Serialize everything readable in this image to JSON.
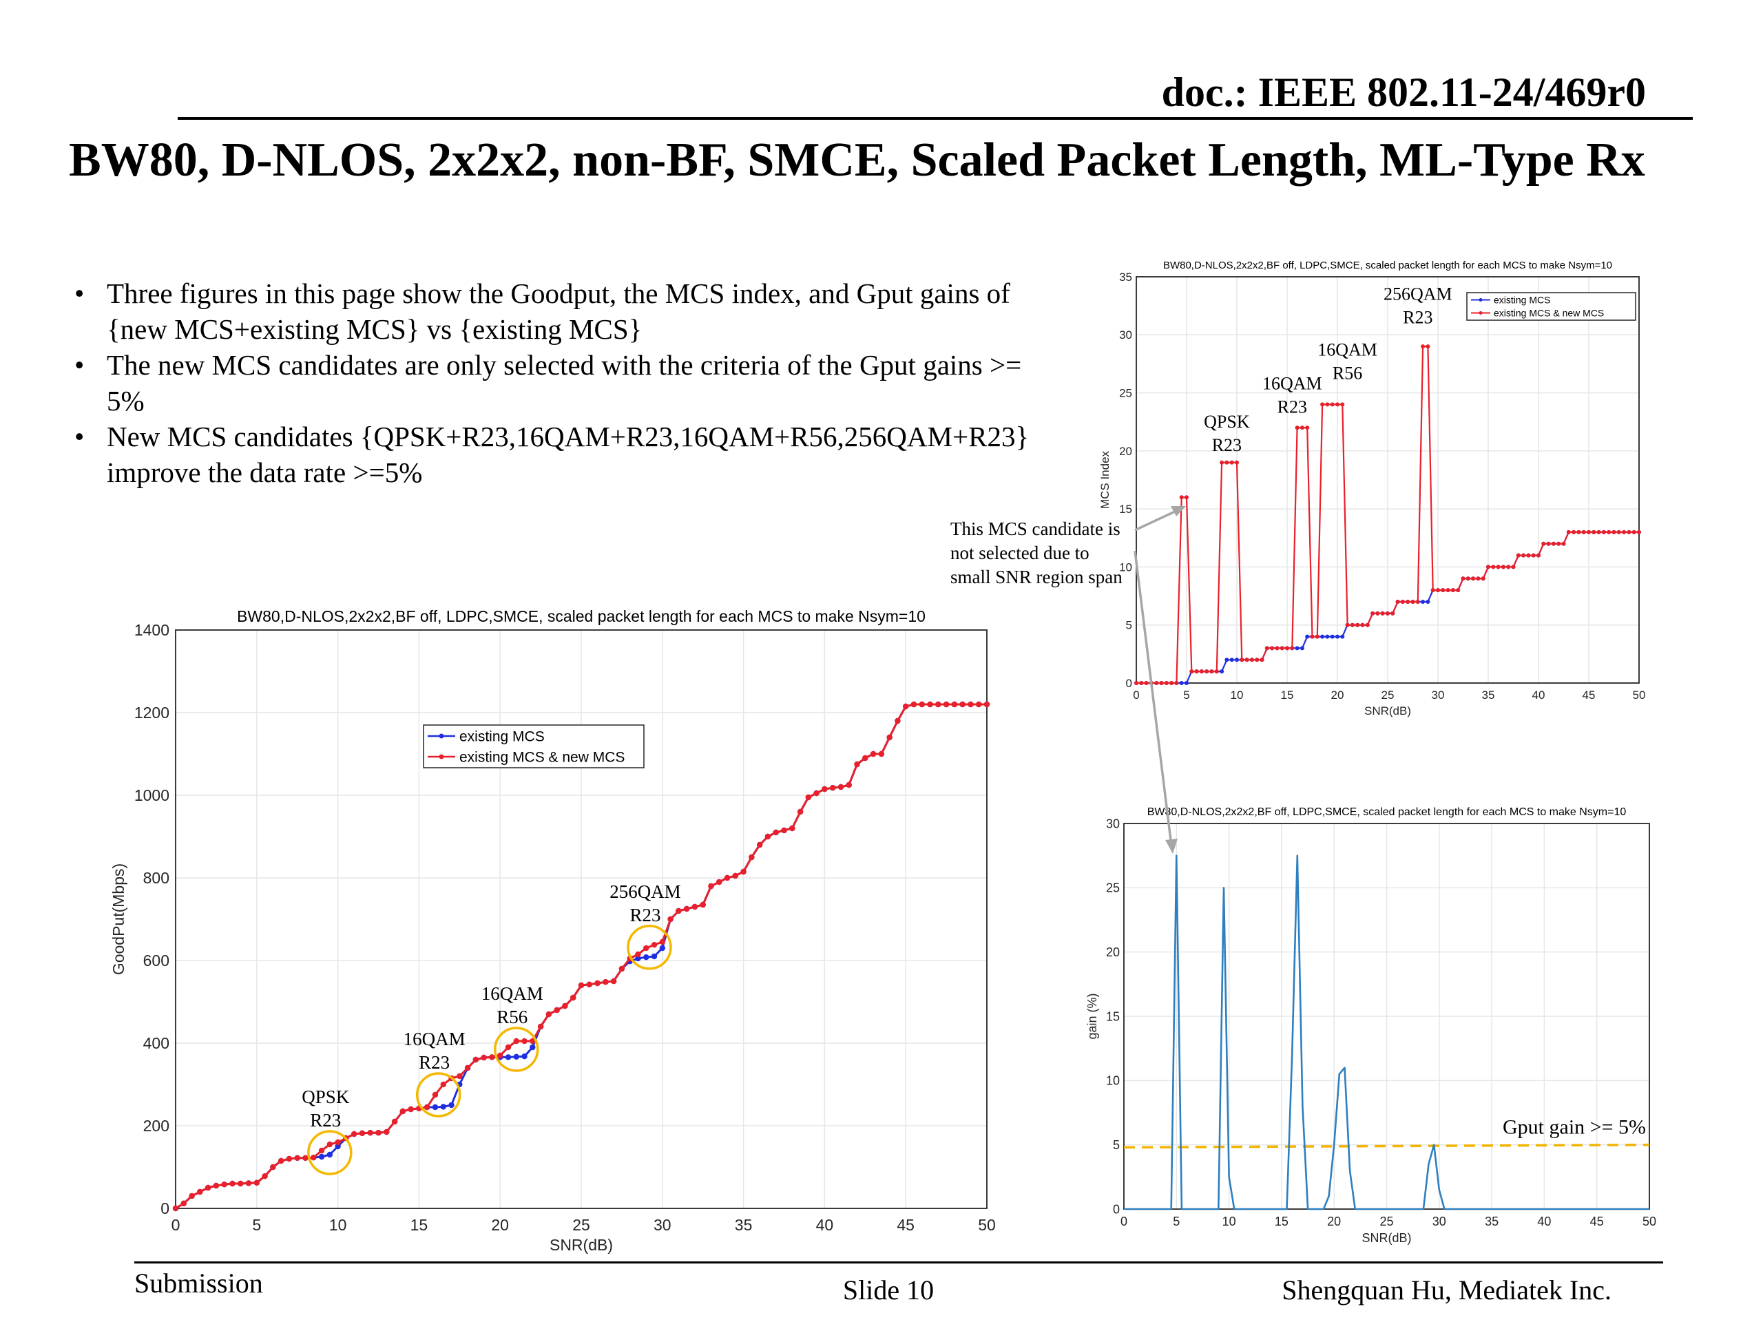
{
  "header": {
    "doc_id": "doc.: IEEE 802.11-24/469r0"
  },
  "title": "BW80, D-NLOS, 2x2x2, non-BF, SMCE, Scaled Packet Length, ML-Type Rx",
  "bullets": [
    "Three figures in this page show the Goodput, the MCS index, and Gput gains of {new MCS+existing MCS} vs {existing MCS}",
    "The new MCS candidates are only selected with the criteria of the Gput gains >= 5%",
    "New MCS candidates {QPSK+R23,16QAM+R23,16QAM+R56,256QAM+R23} improve the data rate >=5%"
  ],
  "footer": {
    "left": "Submission",
    "center": "Slide 10",
    "right": "Shengquan Hu, Mediatek Inc."
  },
  "colors": {
    "existing": "#1f2fe0",
    "new": "#e8202a",
    "gain": "#2e7fbf",
    "threshold": "#f2b400",
    "circle": "#f5b800"
  },
  "callout": {
    "lines": [
      "This MCS candidate is",
      "not selected due to",
      "small SNR region span"
    ]
  },
  "chart_data": [
    {
      "id": "goodput",
      "type": "line",
      "title": "BW80,D-NLOS,2x2x2,BF off, LDPC,SMCE, scaled packet length for each MCS to make Nsym=10",
      "xlabel": "SNR(dB)",
      "ylabel": "GoodPut(Mbps)",
      "xlim": [
        0,
        50
      ],
      "ylim": [
        0,
        1400
      ],
      "xticks": [
        0,
        5,
        10,
        15,
        20,
        25,
        30,
        35,
        40,
        45,
        50
      ],
      "yticks": [
        0,
        200,
        400,
        600,
        800,
        1000,
        1200,
        1400
      ],
      "grid": true,
      "legend": "upper-middle",
      "x": [
        0,
        0.5,
        1,
        1.5,
        2,
        2.5,
        3,
        3.5,
        4,
        4.5,
        5,
        5.5,
        6,
        6.5,
        7,
        7.5,
        8,
        8.5,
        9,
        9.5,
        10,
        10.5,
        11,
        11.5,
        12,
        12.5,
        13,
        13.5,
        14,
        14.5,
        15,
        15.5,
        16,
        16.5,
        17,
        17.5,
        18,
        18.5,
        19,
        19.5,
        20,
        20.5,
        21,
        21.5,
        22,
        22.5,
        23,
        23.5,
        24,
        24.5,
        25,
        25.5,
        26,
        26.5,
        27,
        27.5,
        28,
        28.5,
        29,
        29.5,
        30,
        30.5,
        31,
        31.5,
        32,
        32.5,
        33,
        33.5,
        34,
        34.5,
        35,
        35.5,
        36,
        36.5,
        37,
        37.5,
        38,
        38.5,
        39,
        39.5,
        40,
        40.5,
        41,
        41.5,
        42,
        42.5,
        43,
        43.5,
        44,
        44.5,
        45,
        45.5,
        46,
        46.5,
        47,
        47.5,
        48,
        48.5,
        49,
        49.5,
        50
      ],
      "series": [
        {
          "name": "existing MCS",
          "values": [
            0,
            12,
            30,
            40,
            50,
            55,
            58,
            60,
            60,
            61,
            62,
            78,
            100,
            115,
            120,
            122,
            122,
            123,
            125,
            130,
            150,
            170,
            180,
            182,
            183,
            183,
            185,
            210,
            235,
            240,
            242,
            245,
            245,
            246,
            250,
            300,
            340,
            360,
            365,
            366,
            366,
            366,
            367,
            368,
            390,
            440,
            470,
            480,
            490,
            510,
            540,
            542,
            545,
            548,
            550,
            580,
            598,
            605,
            608,
            610,
            630,
            700,
            720,
            725,
            730,
            735,
            780,
            790,
            800,
            805,
            815,
            850,
            880,
            900,
            910,
            915,
            920,
            960,
            995,
            1005,
            1015,
            1018,
            1020,
            1025,
            1075,
            1090,
            1100,
            1100,
            1140,
            1180,
            1215,
            1220,
            1220,
            1220,
            1220,
            1220,
            1220,
            1220,
            1220,
            1220,
            1220
          ]
        },
        {
          "name": "existing MCS & new MCS",
          "values": [
            0,
            12,
            30,
            40,
            50,
            55,
            58,
            60,
            60,
            61,
            62,
            78,
            100,
            115,
            120,
            122,
            122,
            123,
            140,
            155,
            160,
            170,
            180,
            182,
            183,
            183,
            185,
            210,
            235,
            240,
            242,
            245,
            275,
            300,
            315,
            320,
            340,
            360,
            365,
            366,
            370,
            390,
            405,
            405,
            405,
            440,
            470,
            480,
            490,
            510,
            540,
            542,
            545,
            548,
            550,
            580,
            605,
            615,
            630,
            638,
            645,
            700,
            720,
            725,
            730,
            735,
            780,
            790,
            800,
            805,
            815,
            850,
            880,
            900,
            910,
            915,
            920,
            960,
            995,
            1005,
            1015,
            1018,
            1020,
            1025,
            1075,
            1090,
            1100,
            1100,
            1140,
            1180,
            1215,
            1220,
            1220,
            1220,
            1220,
            1220,
            1220,
            1220,
            1220,
            1220,
            1220
          ]
        }
      ],
      "annotations": [
        {
          "lines": [
            "QPSK",
            "R23"
          ],
          "x": 9.5,
          "y": 135
        },
        {
          "lines": [
            "16QAM",
            "R23"
          ],
          "x": 16.2,
          "y": 275
        },
        {
          "lines": [
            "16QAM",
            "R56"
          ],
          "x": 21,
          "y": 385
        },
        {
          "lines": [
            "256QAM",
            "R23"
          ],
          "x": 29.2,
          "y": 632
        }
      ]
    },
    {
      "id": "mcs",
      "type": "line",
      "title": "BW80,D-NLOS,2x2x2,BF off, LDPC,SMCE, scaled packet length for each MCS to make Nsym=10",
      "xlabel": "SNR(dB)",
      "ylabel": "MCS Index",
      "xlim": [
        0,
        50
      ],
      "ylim": [
        0,
        35
      ],
      "xticks": [
        0,
        5,
        10,
        15,
        20,
        25,
        30,
        35,
        40,
        45,
        50
      ],
      "yticks": [
        0,
        5,
        10,
        15,
        20,
        25,
        30,
        35
      ],
      "grid": true,
      "legend": "top-right",
      "x": [
        0,
        0.5,
        1,
        1.5,
        2,
        2.5,
        3,
        3.5,
        4,
        4.5,
        5,
        5.5,
        6,
        6.5,
        7,
        7.5,
        8,
        8.5,
        9,
        9.5,
        10,
        10.5,
        11,
        11.5,
        12,
        12.5,
        13,
        13.5,
        14,
        14.5,
        15,
        15.5,
        16,
        16.5,
        17,
        17.5,
        18,
        18.5,
        19,
        19.5,
        20,
        20.5,
        21,
        21.5,
        22,
        22.5,
        23,
        23.5,
        24,
        24.5,
        25,
        25.5,
        26,
        26.5,
        27,
        27.5,
        28,
        28.5,
        29,
        29.5,
        30,
        30.5,
        31,
        31.5,
        32,
        32.5,
        33,
        33.5,
        34,
        34.5,
        35,
        35.5,
        36,
        36.5,
        37,
        37.5,
        38,
        38.5,
        39,
        39.5,
        40,
        40.5,
        41,
        41.5,
        42,
        42.5,
        43,
        43.5,
        44,
        44.5,
        45,
        45.5,
        46,
        46.5,
        47,
        47.5,
        48,
        48.5,
        49,
        49.5,
        50
      ],
      "series": [
        {
          "name": "existing MCS",
          "values": [
            0,
            0,
            0,
            0,
            0,
            0,
            0,
            0,
            0,
            0,
            0,
            1,
            1,
            1,
            1,
            1,
            1,
            1,
            2,
            2,
            2,
            2,
            2,
            2,
            2,
            2,
            3,
            3,
            3,
            3,
            3,
            3,
            3,
            3,
            4,
            4,
            4,
            4,
            4,
            4,
            4,
            4,
            5,
            5,
            5,
            5,
            5,
            6,
            6,
            6,
            6,
            6,
            7,
            7,
            7,
            7,
            7,
            7,
            7,
            8,
            8,
            8,
            8,
            8,
            8,
            9,
            9,
            9,
            9,
            9,
            10,
            10,
            10,
            10,
            10,
            10,
            11,
            11,
            11,
            11,
            11,
            12,
            12,
            12,
            12,
            12,
            13,
            13,
            13,
            13,
            13,
            13,
            13,
            13,
            13,
            13,
            13,
            13,
            13,
            13,
            13
          ]
        },
        {
          "name": "existing MCS & new MCS",
          "values": [
            0,
            0,
            0,
            0,
            0,
            0,
            0,
            0,
            0,
            16,
            16,
            1,
            1,
            1,
            1,
            1,
            1,
            19,
            19,
            19,
            19,
            2,
            2,
            2,
            2,
            2,
            3,
            3,
            3,
            3,
            3,
            3,
            22,
            22,
            22,
            4,
            4,
            24,
            24,
            24,
            24,
            24,
            5,
            5,
            5,
            5,
            5,
            6,
            6,
            6,
            6,
            6,
            7,
            7,
            7,
            7,
            7,
            29,
            29,
            8,
            8,
            8,
            8,
            8,
            8,
            9,
            9,
            9,
            9,
            9,
            10,
            10,
            10,
            10,
            10,
            10,
            11,
            11,
            11,
            11,
            11,
            12,
            12,
            12,
            12,
            12,
            13,
            13,
            13,
            13,
            13,
            13,
            13,
            13,
            13,
            13,
            13,
            13,
            13,
            13,
            13
          ]
        }
      ],
      "annotations": [
        {
          "lines": [
            "QPSK",
            "R23"
          ],
          "x": 9,
          "y": 22
        },
        {
          "lines": [
            "16QAM",
            "R23"
          ],
          "x": 15.5,
          "y": 25.3
        },
        {
          "lines": [
            "16QAM",
            "R56"
          ],
          "x": 21,
          "y": 28.2
        },
        {
          "lines": [
            "256QAM",
            "R23"
          ],
          "x": 28,
          "y": 33
        }
      ]
    },
    {
      "id": "gain",
      "type": "line",
      "title": "BW80,D-NLOS,2x2x2,BF off, LDPC,SMCE, scaled packet length for each MCS to make Nsym=10",
      "xlabel": "SNR(dB)",
      "ylabel": "gain (%)",
      "xlim": [
        0,
        50
      ],
      "ylim": [
        0,
        30
      ],
      "xticks": [
        0,
        5,
        10,
        15,
        20,
        25,
        30,
        35,
        40,
        45,
        50
      ],
      "yticks": [
        0,
        5,
        10,
        15,
        20,
        25,
        30
      ],
      "grid": true,
      "x": [
        0,
        0.5,
        1,
        1.5,
        2,
        2.5,
        3,
        3.5,
        4,
        4.5,
        5,
        5.5,
        6,
        6.5,
        7,
        7.5,
        8,
        8.5,
        9,
        9.5,
        10,
        10.5,
        11,
        11.5,
        12,
        12.5,
        13,
        13.5,
        14,
        14.5,
        15,
        15.5,
        16,
        16.5,
        17,
        17.5,
        18,
        18.5,
        19,
        19.5,
        20,
        20.5,
        21,
        21.5,
        22,
        22.5,
        23,
        23.5,
        24,
        24.5,
        25,
        25.5,
        26,
        26.5,
        27,
        27.5,
        28,
        28.5,
        29,
        29.5,
        30,
        30.5,
        31,
        31.5,
        32,
        32.5,
        33,
        33.5,
        34,
        34.5,
        35,
        35.5,
        36,
        36.5,
        37,
        37.5,
        38,
        38.5,
        39,
        39.5,
        40,
        40.5,
        41,
        41.5,
        42,
        42.5,
        43,
        43.5,
        44,
        44.5,
        45,
        45.5,
        46,
        46.5,
        47,
        47.5,
        48,
        48.5,
        49,
        49.5,
        50
      ],
      "series": [
        {
          "name": "gain",
          "values": [
            0,
            0,
            0,
            0,
            0,
            0,
            0,
            0,
            0,
            0,
            27.5,
            0,
            0,
            0,
            0,
            0,
            0,
            0,
            0,
            25,
            2.5,
            0,
            0,
            0,
            0,
            0,
            0,
            0,
            0,
            0,
            0,
            0,
            12,
            27.5,
            8,
            0,
            0,
            0,
            0,
            1,
            5,
            10.5,
            11,
            3,
            0,
            0,
            0,
            0,
            0,
            0,
            0,
            0,
            0,
            0,
            0,
            0,
            0,
            0,
            3.5,
            5,
            1.5,
            0,
            0,
            0,
            0,
            0,
            0,
            0,
            0,
            0,
            0,
            0,
            0,
            0,
            0,
            0,
            0,
            0,
            0,
            0,
            0,
            0,
            0,
            0,
            0,
            0,
            0,
            0,
            0,
            0,
            0,
            0,
            0,
            0,
            0,
            0,
            0,
            0,
            0,
            0,
            0
          ]
        }
      ],
      "threshold": {
        "label": "Gput gain >= 5%",
        "y0": 4.8,
        "y1": 5.0
      }
    }
  ]
}
